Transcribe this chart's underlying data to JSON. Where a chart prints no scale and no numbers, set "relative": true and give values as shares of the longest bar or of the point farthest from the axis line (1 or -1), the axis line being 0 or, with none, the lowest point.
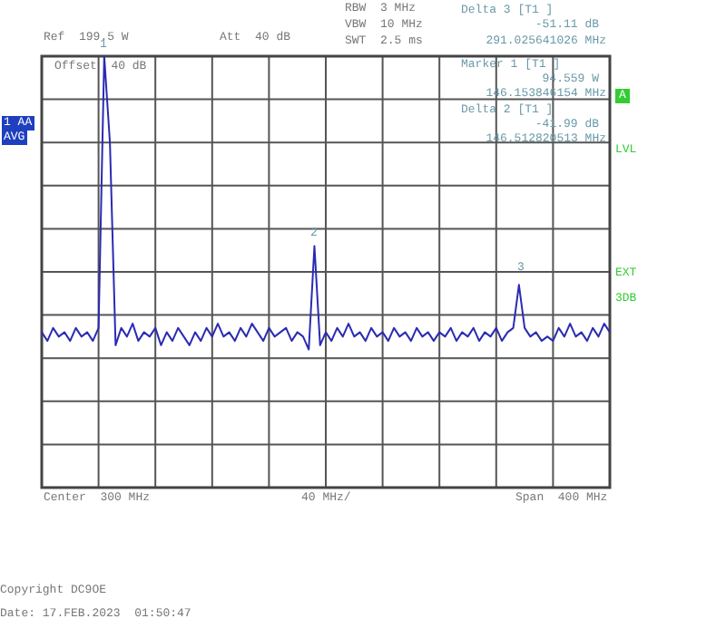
{
  "chart_data": {
    "type": "line",
    "relative": true,
    "grid": true,
    "legend": false,
    "marker": "none",
    "line_style": "solid",
    "categories": [
      null,
      null,
      null,
      null,
      null,
      null,
      null,
      null,
      null,
      null,
      null,
      null,
      null,
      null,
      null,
      null,
      null,
      null,
      null,
      null,
      null,
      null,
      null,
      null,
      null,
      null,
      null,
      null,
      null,
      null,
      null,
      null,
      null,
      null,
      null,
      null,
      null,
      null,
      null,
      null,
      null,
      null,
      null,
      null,
      null,
      null,
      null,
      null,
      null,
      null,
      null,
      null,
      null,
      null,
      null,
      null,
      null,
      null,
      null,
      null,
      null,
      null,
      null,
      null,
      null,
      null,
      null,
      null,
      null,
      null,
      null,
      null,
      null,
      null,
      null,
      null,
      null,
      null,
      null,
      null,
      null,
      null,
      null,
      null,
      null,
      null,
      null,
      null,
      null,
      null,
      null,
      null,
      null,
      null,
      null,
      null,
      null,
      null,
      null,
      null,
      null
    ],
    "series": [
      {
        "color": "#2b2bb3",
        "values": [
          0.36,
          0.34,
          0.37,
          0.35,
          0.36,
          0.34,
          0.37,
          0.35,
          0.36,
          0.34,
          0.37,
          1,
          0.8,
          0.33,
          0.37,
          0.35,
          0.38,
          0.34,
          0.36,
          0.35,
          0.37,
          0.33,
          0.36,
          0.34,
          0.37,
          0.35,
          0.33,
          0.36,
          0.34,
          0.37,
          0.35,
          0.38,
          0.35,
          0.36,
          0.34,
          0.37,
          0.35,
          0.38,
          0.36,
          0.34,
          0.37,
          0.35,
          0.36,
          0.37,
          0.34,
          0.36,
          0.35,
          0.32,
          0.56,
          0.33,
          0.36,
          0.34,
          0.37,
          0.35,
          0.38,
          0.35,
          0.36,
          0.34,
          0.37,
          0.35,
          0.36,
          0.34,
          0.37,
          0.35,
          0.36,
          0.34,
          0.37,
          0.35,
          0.36,
          0.34,
          0.36,
          0.35,
          0.37,
          0.34,
          0.36,
          0.35,
          0.37,
          0.34,
          0.36,
          0.35,
          0.37,
          0.34,
          0.36,
          0.37,
          0.47,
          0.37,
          0.35,
          0.36,
          0.34,
          0.35,
          0.34,
          0.37,
          0.35,
          0.38,
          0.35,
          0.36,
          0.34,
          0.37,
          0.35,
          0.38,
          0.36
        ]
      }
    ],
    "annotations": [
      "Ref  199.5 W",
      "Att  40 dB",
      "Offset  40 dB",
      "RBW  3 MHz",
      "VBW  10 MHz",
      "SWT  2.5 ms",
      "Delta 3 [T1 ]",
      "-51.11 dB",
      "291.025641026 MHz",
      "Marker 1 [T1 ]",
      "94.559 W",
      "146.153846154 MHz",
      "Delta 2 [T1 ]",
      "-41.99 dB",
      "146.512820513 MHz",
      "1 AA",
      "AVG",
      "A",
      "LVL",
      "EXT",
      "3DB",
      "Center  300 MHz",
      "40 MHz/",
      "Span  400 MHz",
      "Copyright DC9OE",
      "Date: 17.FEB.2023  01:50:47",
      "1",
      "2",
      "3"
    ]
  }
}
